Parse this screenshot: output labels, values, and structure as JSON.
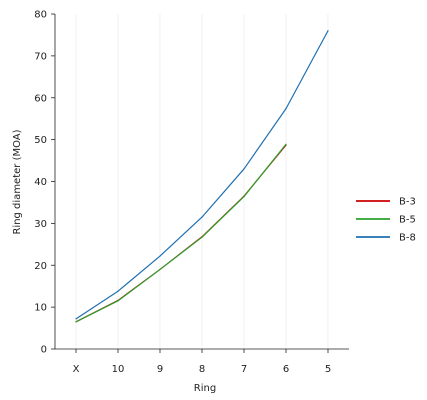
{
  "chart_data": {
    "type": "line",
    "title": "",
    "xlabel": "Ring",
    "ylabel": "Ring diameter (MOA)",
    "categories": [
      "X",
      "10",
      "9",
      "8",
      "7",
      "6",
      "5"
    ],
    "ylim": [
      0,
      80
    ],
    "yticks": [
      0,
      10,
      20,
      30,
      40,
      50,
      60,
      70,
      80
    ],
    "grid": "vertical",
    "legend_position": "right",
    "series": [
      {
        "name": "B-3",
        "color": "#cc0000",
        "values": [
          6.5,
          11.6,
          19.0,
          26.8,
          36.5,
          48.7,
          null
        ]
      },
      {
        "name": "B-5",
        "color": "#2ca02c",
        "values": [
          6.5,
          11.5,
          19.0,
          26.7,
          36.4,
          48.9,
          null
        ]
      },
      {
        "name": "B-8",
        "color": "#1f6fb0",
        "values": [
          7.2,
          13.8,
          22.2,
          31.5,
          43.0,
          57.4,
          76.0
        ]
      }
    ]
  }
}
